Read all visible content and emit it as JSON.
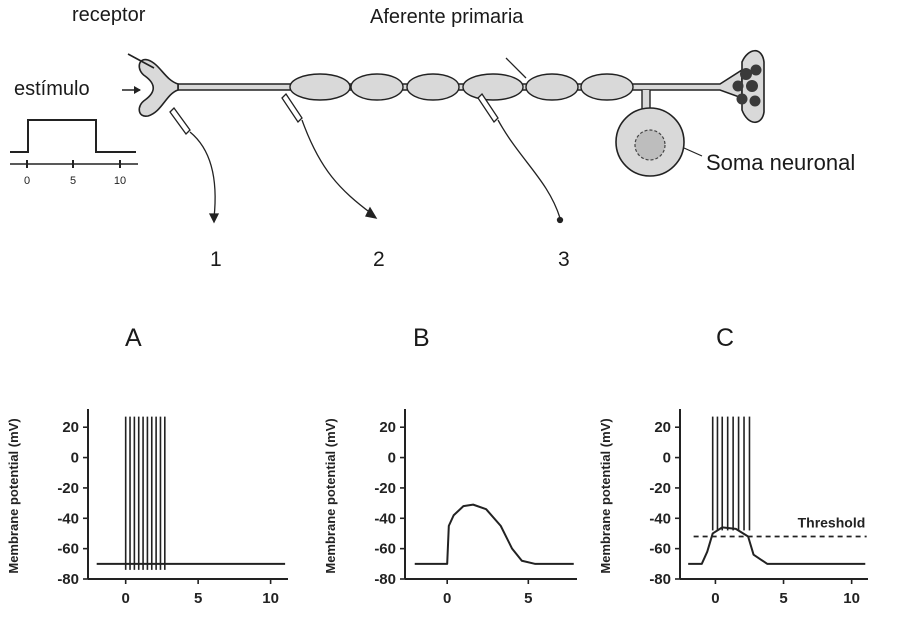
{
  "labels": {
    "receptor": "receptor",
    "afferent": "Aferente primaria",
    "stimulus": "estímulo",
    "soma": "Soma neuronal",
    "electrodes": [
      "1",
      "2",
      "3"
    ]
  },
  "stimulus_axis": {
    "ticks": [
      "0",
      "5",
      "10"
    ]
  },
  "panels": [
    {
      "title": "A",
      "ylabel": "Membrane potential (mV)",
      "yticks": [
        "20",
        "0",
        "-20",
        "-40",
        "-60",
        "-80"
      ],
      "xticks": [
        "0",
        "5",
        "10"
      ],
      "trace": "spikes_from_rest",
      "resting_mV": -70,
      "spike_peak_mV": 27,
      "spike_times": [
        0.0,
        0.3,
        0.6,
        0.9,
        1.2,
        1.5,
        1.8,
        2.1,
        2.4,
        2.7
      ]
    },
    {
      "title": "B",
      "ylabel": "Membrane potential (mV)",
      "yticks": [
        "20",
        "0",
        "-20",
        "-40",
        "-60",
        "-80"
      ],
      "xticks": [
        "0",
        "5"
      ],
      "trace": "generator_potential",
      "resting_mV": -70,
      "peak_mV": -31
    },
    {
      "title": "C",
      "ylabel": "Membrane potential (mV)",
      "yticks": [
        "20",
        "0",
        "-20",
        "-40",
        "-60",
        "-80"
      ],
      "xticks": [
        "0",
        "5",
        "10"
      ],
      "trace": "spikes_over_threshold",
      "resting_mV": -70,
      "plateau_mV": -46,
      "spike_peak_mV": 27,
      "threshold_mV": -52,
      "threshold_label": "Threshold",
      "spike_times": [
        -0.2,
        0.15,
        0.5,
        0.9,
        1.3,
        1.7,
        2.1,
        2.5
      ]
    }
  ],
  "colors": {
    "ink": "#222222",
    "fill": "#d9d9d9",
    "dark": "#3a3a3a"
  }
}
